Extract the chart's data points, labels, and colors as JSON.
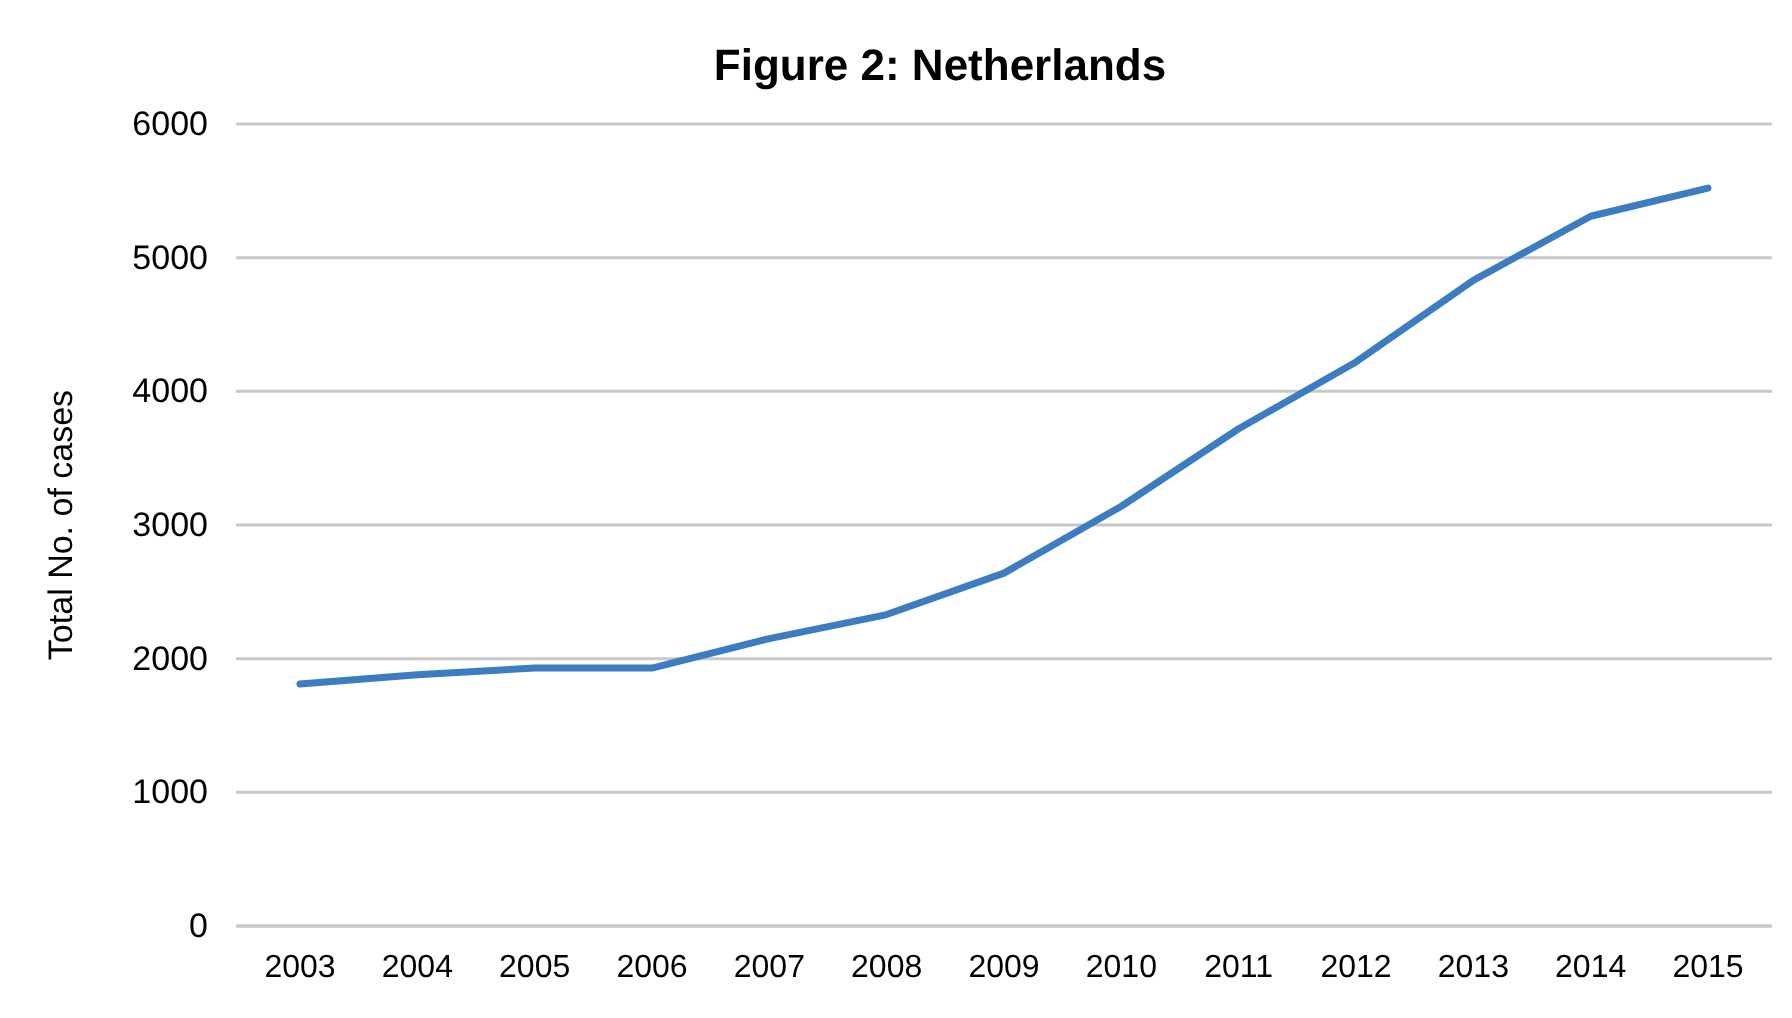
{
  "chart_data": {
    "type": "line",
    "title": "Figure 2: Netherlands",
    "ylabel": "Total No. of cases",
    "categories": [
      "2003",
      "2004",
      "2005",
      "2006",
      "2007",
      "2008",
      "2009",
      "2010",
      "2011",
      "2012",
      "2013",
      "2014",
      "2015"
    ],
    "series": [
      {
        "color": "#3b7dc0",
        "values": [
          1810,
          1880,
          1930,
          1930,
          2150,
          2330,
          2640,
          3140,
          3720,
          4220,
          4830,
          5310,
          5520
        ]
      }
    ],
    "ylim": [
      0,
      6000
    ],
    "yticks": [
      0,
      1000,
      2000,
      3000,
      4000,
      5000,
      6000
    ],
    "grid": "y",
    "marker": "none",
    "line_style": "solid"
  }
}
